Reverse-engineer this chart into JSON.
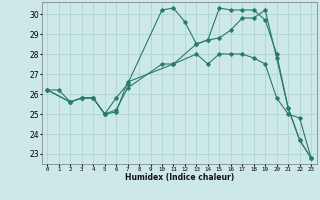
{
  "title": "",
  "xlabel": "Humidex (Indice chaleur)",
  "ylabel": "",
  "xlim": [
    -0.5,
    23.5
  ],
  "ylim": [
    22.5,
    30.6
  ],
  "xticks": [
    0,
    1,
    2,
    3,
    4,
    5,
    6,
    7,
    8,
    9,
    10,
    11,
    12,
    13,
    14,
    15,
    16,
    17,
    18,
    19,
    20,
    21,
    22,
    23
  ],
  "yticks": [
    23,
    24,
    25,
    26,
    27,
    28,
    29,
    30
  ],
  "bg_color": "#cce8e8",
  "line_color": "#2a7a6a",
  "grid_color": "#aacfcf",
  "lines": [
    {
      "x": [
        0,
        1,
        2,
        3,
        4,
        5,
        6,
        7,
        10,
        11,
        12,
        13,
        14,
        15,
        16,
        17,
        18,
        19,
        20,
        21,
        22,
        23
      ],
      "y": [
        26.2,
        26.2,
        25.6,
        25.8,
        25.8,
        25.0,
        25.8,
        26.5,
        30.2,
        30.3,
        29.6,
        28.5,
        28.7,
        30.3,
        30.2,
        30.2,
        30.2,
        29.7,
        28.0,
        25.3,
        23.7,
        22.8
      ]
    },
    {
      "x": [
        0,
        2,
        3,
        4,
        5,
        6,
        7,
        10,
        11,
        13,
        14,
        15,
        16,
        17,
        18,
        19,
        20,
        21,
        22,
        23
      ],
      "y": [
        26.2,
        25.6,
        25.8,
        25.8,
        25.0,
        25.2,
        26.3,
        27.5,
        27.5,
        28.5,
        28.7,
        28.8,
        29.2,
        29.8,
        29.8,
        30.2,
        27.8,
        25.3,
        23.7,
        22.8
      ]
    },
    {
      "x": [
        0,
        2,
        3,
        4,
        5,
        6,
        7,
        11,
        13,
        14,
        15,
        16,
        17,
        18,
        19,
        20,
        21,
        22,
        23
      ],
      "y": [
        26.2,
        25.6,
        25.8,
        25.8,
        25.0,
        25.1,
        26.6,
        27.5,
        28.0,
        27.5,
        28.0,
        28.0,
        28.0,
        27.8,
        27.5,
        25.8,
        25.0,
        24.8,
        22.8
      ]
    }
  ]
}
